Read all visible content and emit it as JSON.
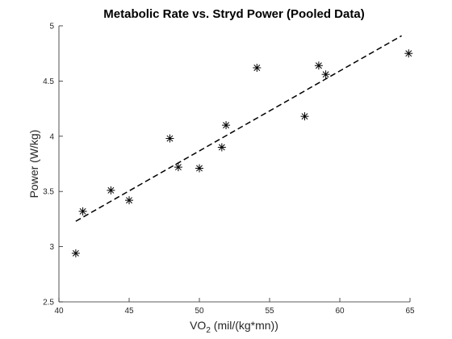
{
  "chart_data": {
    "type": "scatter",
    "title": "Metabolic Rate vs. Stryd Power (Pooled Data)",
    "xlabel_main": "VO",
    "xlabel_sub": "2",
    "xlabel_rest": " (mil/(kg*mn))",
    "ylabel": "Power (W/kg)",
    "xlim": [
      40,
      65
    ],
    "ylim": [
      2.5,
      5
    ],
    "xticks": [
      40,
      45,
      50,
      55,
      60,
      65
    ],
    "yticks": [
      2.5,
      3,
      3.5,
      4,
      4.5,
      5
    ],
    "grid": false,
    "marker": "asterisk",
    "colors": {
      "marker": "#000000",
      "fit_line": "#000000",
      "axes": "#262626"
    },
    "series": [
      {
        "points": [
          {
            "x": 41.2,
            "y": 2.94
          },
          {
            "x": 41.7,
            "y": 3.32
          },
          {
            "x": 43.7,
            "y": 3.51
          },
          {
            "x": 45.0,
            "y": 3.42
          },
          {
            "x": 47.9,
            "y": 3.98
          },
          {
            "x": 48.5,
            "y": 3.72
          },
          {
            "x": 50.0,
            "y": 3.71
          },
          {
            "x": 51.6,
            "y": 3.9
          },
          {
            "x": 51.9,
            "y": 4.1
          },
          {
            "x": 54.1,
            "y": 4.62
          },
          {
            "x": 57.5,
            "y": 4.18
          },
          {
            "x": 58.5,
            "y": 4.64
          },
          {
            "x": 59.0,
            "y": 4.56
          },
          {
            "x": 64.9,
            "y": 4.75
          }
        ]
      }
    ],
    "fit_line": {
      "style": "dashed",
      "x": [
        41.2,
        64.4
      ],
      "y": [
        3.23,
        4.91
      ]
    }
  }
}
